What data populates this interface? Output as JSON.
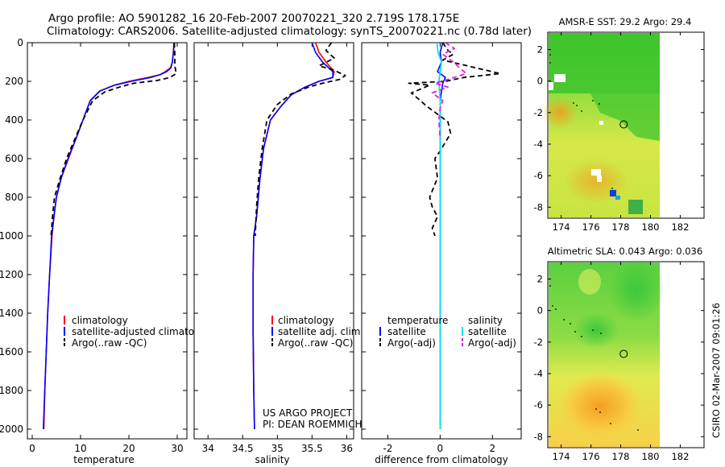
{
  "title_line1": "Argo profile: AO 5901282_16 20-Feb-2007 20070221_320 2.719S 178.175E",
  "title_line2": "Climatology: CARS2006. Satellite-adjusted climatology: synTS_20070221.nc (0.78d later)",
  "credit_right": "CSIRO 02-Mar-2007 09:01:26",
  "project_line1": "US ARGO PROJECT",
  "project_line2": "PI: DEAN ROEMMICH",
  "colors": {
    "red": "#ff0000",
    "blue": "#0000ff",
    "black": "#000000",
    "cyan": "#00e5ee",
    "magenta": "#e020e0"
  },
  "chart_data": [
    {
      "id": "temperature",
      "type": "line",
      "xlabel": "temperature",
      "xlim": [
        -1,
        32
      ],
      "ylim": [
        2050,
        0
      ],
      "xticks": [
        0,
        10,
        20,
        30
      ],
      "yticks": [
        0,
        200,
        400,
        600,
        800,
        1000,
        1200,
        1400,
        1600,
        1800,
        2000
      ],
      "legend": [
        "climatology",
        "satellite-adjusted climatology",
        "Argo(..raw -QC)"
      ],
      "series": [
        {
          "name": "climatology",
          "color": "#ff0000",
          "width": 1.6,
          "dash": "",
          "points": [
            [
              29.3,
              0
            ],
            [
              29.2,
              50
            ],
            [
              29.0,
              100
            ],
            [
              28.6,
              130
            ],
            [
              27.5,
              150
            ],
            [
              26.5,
              165
            ],
            [
              24.0,
              180
            ],
            [
              20.0,
              200
            ],
            [
              17.0,
              220
            ],
            [
              14.0,
              250
            ],
            [
              12.0,
              300
            ],
            [
              10.5,
              400
            ],
            [
              9.0,
              500
            ],
            [
              7.5,
              600
            ],
            [
              6.0,
              700
            ],
            [
              5.0,
              800
            ],
            [
              4.5,
              900
            ],
            [
              4.1,
              1000
            ],
            [
              3.6,
              1200
            ],
            [
              3.2,
              1400
            ],
            [
              2.9,
              1600
            ],
            [
              2.6,
              1800
            ],
            [
              2.4,
              2000
            ]
          ]
        },
        {
          "name": "satellite-adjusted climatology",
          "color": "#0000ff",
          "width": 1.6,
          "dash": "",
          "points": [
            [
              29.4,
              0
            ],
            [
              29.2,
              50
            ],
            [
              29.0,
              100
            ],
            [
              28.7,
              130
            ],
            [
              27.8,
              150
            ],
            [
              26.5,
              165
            ],
            [
              24.5,
              180
            ],
            [
              20.5,
              200
            ],
            [
              17.0,
              220
            ],
            [
              14.0,
              250
            ],
            [
              12.0,
              300
            ],
            [
              10.5,
              400
            ],
            [
              9.0,
              500
            ],
            [
              7.4,
              600
            ],
            [
              6.0,
              700
            ],
            [
              5.0,
              800
            ],
            [
              4.5,
              900
            ],
            [
              4.0,
              1000
            ],
            [
              3.6,
              1200
            ],
            [
              3.2,
              1400
            ],
            [
              2.9,
              1600
            ],
            [
              2.6,
              1800
            ],
            [
              2.3,
              2000
            ]
          ]
        },
        {
          "name": "Argo(..raw -QC)",
          "color": "#000000",
          "width": 1.8,
          "dash": "6,4",
          "points": [
            [
              29.4,
              0
            ],
            [
              29.5,
              60
            ],
            [
              29.5,
              120
            ],
            [
              29.8,
              160
            ],
            [
              28.5,
              180
            ],
            [
              26.0,
              195
            ],
            [
              21.0,
              210
            ],
            [
              18.0,
              230
            ],
            [
              15.0,
              255
            ],
            [
              12.5,
              300
            ],
            [
              10.5,
              400
            ],
            [
              8.8,
              500
            ],
            [
              7.1,
              600
            ],
            [
              5.8,
              700
            ],
            [
              4.6,
              800
            ],
            [
              4.2,
              900
            ],
            [
              3.9,
              1000
            ]
          ]
        }
      ]
    },
    {
      "id": "salinity",
      "type": "line",
      "xlabel": "salinity",
      "xlim": [
        33.8,
        36.1
      ],
      "ylim": [
        2050,
        0
      ],
      "xticks": [
        34,
        34.5,
        35,
        35.5,
        36
      ],
      "xtick_labels": [
        "34",
        "34.5",
        "35",
        "35.5",
        "36"
      ],
      "legend": [
        "climatology",
        "satellite adj. clim.",
        "Argo(..raw -QC)"
      ],
      "series": [
        {
          "name": "climatology",
          "color": "#ff0000",
          "width": 1.6,
          "dash": "",
          "points": [
            [
              35.55,
              0
            ],
            [
              35.6,
              50
            ],
            [
              35.7,
              100
            ],
            [
              35.82,
              150
            ],
            [
              35.8,
              180
            ],
            [
              35.6,
              200
            ],
            [
              35.4,
              230
            ],
            [
              35.2,
              270
            ],
            [
              35.05,
              330
            ],
            [
              34.9,
              400
            ],
            [
              34.8,
              550
            ],
            [
              34.75,
              700
            ],
            [
              34.7,
              900
            ],
            [
              34.66,
              1000
            ],
            [
              34.65,
              1200
            ],
            [
              34.65,
              1500
            ],
            [
              34.66,
              1800
            ],
            [
              34.67,
              2000
            ]
          ]
        },
        {
          "name": "satellite adj. clim.",
          "color": "#0000ff",
          "width": 1.6,
          "dash": "",
          "points": [
            [
              35.5,
              0
            ],
            [
              35.55,
              50
            ],
            [
              35.65,
              100
            ],
            [
              35.8,
              150
            ],
            [
              35.8,
              180
            ],
            [
              35.6,
              200
            ],
            [
              35.4,
              230
            ],
            [
              35.2,
              270
            ],
            [
              35.05,
              330
            ],
            [
              34.9,
              400
            ],
            [
              34.8,
              550
            ],
            [
              34.75,
              700
            ],
            [
              34.7,
              900
            ],
            [
              34.66,
              1000
            ],
            [
              34.65,
              1200
            ],
            [
              34.65,
              1500
            ],
            [
              34.66,
              1800
            ],
            [
              34.67,
              2000
            ]
          ]
        },
        {
          "name": "Argo(..raw -QC)",
          "color": "#000000",
          "width": 1.8,
          "dash": "6,4",
          "points": [
            [
              35.78,
              0
            ],
            [
              35.7,
              40
            ],
            [
              35.82,
              80
            ],
            [
              35.6,
              120
            ],
            [
              35.8,
              140
            ],
            [
              35.98,
              170
            ],
            [
              35.9,
              190
            ],
            [
              35.65,
              210
            ],
            [
              35.45,
              230
            ],
            [
              35.2,
              265
            ],
            [
              35.0,
              320
            ],
            [
              34.85,
              400
            ],
            [
              34.78,
              550
            ],
            [
              34.73,
              700
            ],
            [
              34.7,
              850
            ],
            [
              34.68,
              1000
            ]
          ]
        }
      ]
    },
    {
      "id": "difference",
      "type": "line",
      "xlabel": "difference from climatology",
      "xlim": [
        -3,
        3.1
      ],
      "ylim": [
        2050,
        0
      ],
      "xticks": [
        -2,
        0,
        2
      ],
      "legend_left_title": "temperature",
      "legend_left": [
        "satellite",
        "Argo(-adj)"
      ],
      "legend_right_title": "salinity",
      "legend_right": [
        "satellite",
        "Argo(-adj)"
      ],
      "series": [
        {
          "name": "temperature satellite",
          "color": "#0000ff",
          "width": 1.6,
          "dash": "",
          "points": [
            [
              0.1,
              0
            ],
            [
              0.0,
              50
            ],
            [
              0.05,
              100
            ],
            [
              -0.1,
              150
            ],
            [
              0.2,
              180
            ],
            [
              0.1,
              210
            ],
            [
              0.0,
              300
            ],
            [
              0.0,
              600
            ],
            [
              0.0,
              1000
            ],
            [
              0.0,
              2000
            ]
          ]
        },
        {
          "name": "temperature Argo(-adj)",
          "color": "#000000",
          "width": 1.8,
          "dash": "6,4",
          "points": [
            [
              0.1,
              0
            ],
            [
              0.3,
              40
            ],
            [
              0.5,
              60
            ],
            [
              0.1,
              90
            ],
            [
              2.3,
              160
            ],
            [
              0.9,
              180
            ],
            [
              0.2,
              200
            ],
            [
              -1.2,
              210
            ],
            [
              -0.4,
              220
            ],
            [
              -1.1,
              260
            ],
            [
              -0.5,
              330
            ],
            [
              0.3,
              410
            ],
            [
              0.4,
              470
            ],
            [
              0.0,
              560
            ],
            [
              -0.2,
              600
            ],
            [
              -0.1,
              700
            ],
            [
              -0.4,
              800
            ],
            [
              -0.3,
              850
            ],
            [
              -0.1,
              900
            ],
            [
              -0.3,
              960
            ],
            [
              -0.2,
              1000
            ]
          ]
        },
        {
          "name": "salinity satellite",
          "color": "#00e5ee",
          "width": 1.8,
          "dash": "",
          "points": [
            [
              -0.12,
              0
            ],
            [
              -0.08,
              50
            ],
            [
              0.05,
              100
            ],
            [
              0.0,
              150
            ],
            [
              -0.05,
              200
            ],
            [
              0.0,
              300
            ],
            [
              0.0,
              500
            ],
            [
              0.0,
              1000
            ],
            [
              0.0,
              2000
            ]
          ]
        },
        {
          "name": "salinity Argo(-adj)",
          "color": "#e020e0",
          "width": 1.8,
          "dash": "6,4",
          "points": [
            [
              0.2,
              0
            ],
            [
              0.55,
              30
            ],
            [
              0.1,
              60
            ],
            [
              0.5,
              100
            ],
            [
              1.0,
              160
            ],
            [
              0.3,
              190
            ],
            [
              -0.2,
              210
            ],
            [
              0.3,
              230
            ],
            [
              -0.3,
              260
            ],
            [
              0.1,
              300
            ],
            [
              0.0,
              340
            ],
            [
              -0.05,
              400
            ],
            [
              0.0,
              500
            ]
          ]
        }
      ]
    },
    {
      "id": "sst_map",
      "type": "heatmap",
      "title": "AMSR-E SST: 29.2 Argo: 29.4",
      "xlim": [
        173.1,
        183.6
      ],
      "ylim": [
        -8.7,
        3.1
      ],
      "xticks": [
        174,
        176,
        178,
        180,
        182
      ],
      "yticks": [
        2,
        0,
        -2,
        -4,
        -6,
        -8
      ],
      "data_extent": {
        "lon": [
          173.1,
          180.2
        ],
        "lat": [
          -8.7,
          3.1
        ]
      },
      "float_position": [
        178.2,
        -2.75
      ]
    },
    {
      "id": "sla_map",
      "type": "heatmap",
      "title": "Altimetric SLA: 0.043 Argo: 0.036",
      "xlim": [
        173.1,
        183.6
      ],
      "ylim": [
        -8.7,
        3.1
      ],
      "xticks": [
        174,
        176,
        178,
        180,
        182
      ],
      "yticks": [
        2,
        0,
        -2,
        -4,
        -6,
        -8
      ],
      "data_extent": {
        "lon": [
          173.1,
          180.2
        ],
        "lat": [
          -8.7,
          3.1
        ]
      },
      "float_position": [
        178.2,
        -2.75
      ]
    }
  ]
}
